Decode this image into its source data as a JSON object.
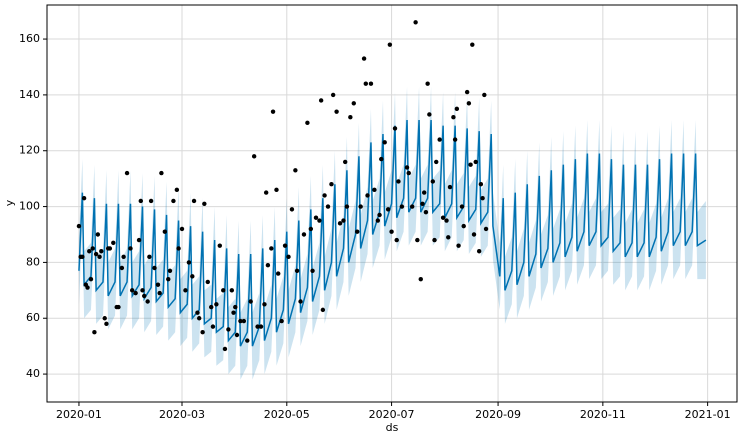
{
  "chart_data": {
    "type": "line",
    "xlabel": "ds",
    "ylabel": "y",
    "xlim": [
      -18.6,
      383.1
    ],
    "ylim": [
      30,
      172.2
    ],
    "xticks": [
      {
        "value": 0,
        "label": "2020-01"
      },
      {
        "value": 60,
        "label": "2020-03"
      },
      {
        "value": 121,
        "label": "2020-05"
      },
      {
        "value": 182,
        "label": "2020-07"
      },
      {
        "value": 244,
        "label": "2020-09"
      },
      {
        "value": 305,
        "label": "2020-11"
      },
      {
        "value": 366,
        "label": "2021-01"
      }
    ],
    "yticks": [
      40,
      60,
      80,
      100,
      120,
      140,
      160
    ],
    "grid": true,
    "x": [
      0,
      2,
      3,
      7,
      9,
      10,
      14,
      16,
      17,
      21,
      23,
      24,
      28,
      30,
      31,
      35,
      37,
      38,
      42,
      44,
      45,
      49,
      51,
      52,
      56,
      58,
      59,
      63,
      65,
      66,
      70,
      72,
      73,
      77,
      79,
      80,
      84,
      86,
      87,
      91,
      93,
      94,
      98,
      100,
      101,
      105,
      107,
      108,
      112,
      114,
      115,
      119,
      121,
      122,
      126,
      128,
      129,
      133,
      135,
      136,
      140,
      142,
      143,
      147,
      149,
      150,
      154,
      156,
      157,
      161,
      163,
      164,
      168,
      170,
      171,
      175,
      177,
      178,
      182,
      184,
      185,
      189,
      191,
      192,
      196,
      198,
      199,
      203,
      205,
      206,
      210,
      212,
      213,
      217,
      219,
      220,
      224,
      226,
      227,
      231,
      233,
      234,
      238,
      240,
      241,
      245,
      247,
      248,
      252,
      254,
      255,
      259,
      261,
      262,
      266,
      268,
      269,
      273,
      275,
      276,
      280,
      282,
      283,
      287,
      289,
      290,
      294,
      296,
      297,
      301,
      303,
      304,
      308,
      310,
      311,
      315,
      317,
      318,
      322,
      324,
      325,
      329,
      331,
      332,
      336,
      338,
      339,
      343,
      345,
      346,
      350,
      352,
      353,
      357,
      359,
      360,
      365
    ],
    "series": [
      {
        "color": "#0072B2",
        "values": [
          77,
          105,
          72,
          75,
          103,
          70,
          73,
          101,
          68,
          73,
          101,
          68,
          73,
          101,
          68,
          72,
          100,
          67,
          71,
          99,
          66,
          69,
          97,
          64,
          67,
          95,
          62,
          65,
          93,
          60,
          63,
          91,
          58,
          60,
          88,
          55,
          57,
          85,
          52,
          55,
          83,
          50,
          55,
          83,
          50,
          57,
          85,
          52,
          60,
          88,
          55,
          63,
          91,
          58,
          67,
          95,
          62,
          71,
          99,
          66,
          75,
          103,
          70,
          80,
          108,
          75,
          85,
          113,
          80,
          90,
          118,
          85,
          95,
          123,
          90,
          98,
          126,
          93,
          101,
          129,
          96,
          103,
          131,
          98,
          103,
          131,
          98,
          103,
          131,
          98,
          101,
          129,
          96,
          101,
          129,
          96,
          100,
          128,
          95,
          99,
          127,
          94,
          98,
          126,
          93,
          75,
          103,
          70,
          77,
          105,
          72,
          80,
          108,
          75,
          83,
          111,
          78,
          85,
          113,
          80,
          87,
          115,
          82,
          89,
          117,
          84,
          91,
          119,
          86,
          91,
          119,
          86,
          89,
          117,
          84,
          87,
          115,
          82,
          87,
          115,
          82,
          87,
          115,
          82,
          89,
          117,
          84,
          91,
          119,
          86,
          91,
          119,
          86,
          91,
          119,
          86,
          88
        ]
      }
    ],
    "band": {
      "color": "#0072B2",
      "lower": [
        65,
        93,
        60,
        63,
        91,
        58,
        61,
        89,
        56,
        61,
        89,
        56,
        61,
        89,
        56,
        60,
        88,
        55,
        59,
        87,
        54,
        57,
        85,
        52,
        55,
        83,
        50,
        53,
        81,
        48,
        51,
        79,
        46,
        48,
        76,
        43,
        45,
        73,
        40,
        43,
        71,
        38,
        43,
        71,
        38,
        45,
        73,
        40,
        48,
        76,
        43,
        51,
        79,
        46,
        55,
        83,
        50,
        59,
        87,
        54,
        63,
        91,
        58,
        68,
        96,
        63,
        73,
        101,
        68,
        78,
        106,
        73,
        83,
        111,
        78,
        86,
        114,
        81,
        89,
        117,
        84,
        91,
        119,
        86,
        91,
        119,
        86,
        91,
        119,
        86,
        89,
        117,
        84,
        89,
        117,
        84,
        88,
        116,
        83,
        87,
        115,
        82,
        86,
        114,
        81,
        63,
        91,
        58,
        65,
        93,
        60,
        68,
        96,
        63,
        71,
        99,
        66,
        73,
        101,
        68,
        75,
        103,
        70,
        77,
        105,
        72,
        79,
        107,
        74,
        79,
        107,
        74,
        77,
        105,
        72,
        75,
        103,
        70,
        75,
        103,
        70,
        75,
        103,
        70,
        77,
        105,
        72,
        79,
        107,
        74,
        79,
        107,
        74,
        79,
        107,
        74,
        74
      ],
      "upper": [
        89,
        117,
        84,
        87,
        115,
        82,
        85,
        113,
        80,
        85,
        113,
        80,
        85,
        113,
        80,
        84,
        112,
        79,
        83,
        111,
        78,
        81,
        109,
        76,
        79,
        107,
        74,
        77,
        105,
        72,
        75,
        103,
        70,
        72,
        100,
        67,
        69,
        97,
        64,
        67,
        95,
        62,
        67,
        95,
        62,
        69,
        97,
        64,
        72,
        100,
        67,
        75,
        103,
        70,
        79,
        107,
        74,
        83,
        111,
        78,
        87,
        115,
        82,
        92,
        120,
        87,
        97,
        125,
        92,
        102,
        130,
        97,
        107,
        135,
        102,
        110,
        138,
        105,
        113,
        141,
        108,
        115,
        143,
        110,
        115,
        143,
        110,
        115,
        143,
        110,
        113,
        141,
        108,
        113,
        141,
        108,
        112,
        140,
        107,
        111,
        139,
        106,
        110,
        138,
        105,
        87,
        115,
        82,
        89,
        117,
        84,
        92,
        120,
        87,
        95,
        123,
        90,
        97,
        125,
        92,
        99,
        127,
        94,
        101,
        129,
        96,
        103,
        131,
        98,
        103,
        131,
        98,
        101,
        129,
        96,
        99,
        127,
        94,
        99,
        127,
        94,
        99,
        127,
        94,
        101,
        129,
        96,
        103,
        131,
        98,
        103,
        131,
        98,
        103,
        131,
        98,
        102
      ]
    },
    "points": {
      "color": "#000000",
      "x": [
        0,
        1,
        2,
        3,
        4,
        5,
        6,
        7,
        8,
        9,
        10,
        11,
        12,
        13,
        15,
        16,
        17,
        18,
        20,
        22,
        23,
        25,
        26,
        28,
        30,
        31,
        33,
        35,
        36,
        37,
        38,
        40,
        41,
        42,
        44,
        46,
        47,
        48,
        50,
        52,
        53,
        55,
        57,
        58,
        60,
        62,
        64,
        66,
        67,
        69,
        70,
        72,
        73,
        75,
        77,
        78,
        80,
        82,
        84,
        85,
        87,
        89,
        90,
        91,
        92,
        94,
        96,
        98,
        100,
        102,
        104,
        106,
        108,
        109,
        110,
        112,
        113,
        115,
        116,
        118,
        120,
        122,
        124,
        126,
        127,
        129,
        131,
        133,
        135,
        136,
        138,
        140,
        141,
        142,
        143,
        145,
        147,
        148,
        150,
        152,
        154,
        155,
        156,
        158,
        160,
        162,
        164,
        166,
        167,
        168,
        170,
        172,
        174,
        175,
        176,
        178,
        180,
        181,
        182,
        184,
        185,
        186,
        188,
        191,
        192,
        194,
        196,
        197,
        199,
        200,
        201,
        202,
        203,
        204,
        206,
        207,
        208,
        210,
        212,
        214,
        215,
        216,
        218,
        219,
        220,
        221,
        223,
        224,
        226,
        227,
        228,
        229,
        230,
        231,
        233,
        234,
        235,
        236,
        237
      ],
      "values": [
        93,
        82,
        82,
        103,
        72,
        71,
        84,
        74,
        85,
        55,
        83,
        90,
        82,
        84,
        60,
        58,
        85,
        85,
        87,
        64,
        64,
        78,
        82,
        112,
        85,
        70,
        69,
        88,
        102,
        70,
        68,
        66,
        82,
        102,
        78,
        72,
        69,
        112,
        91,
        74,
        77,
        102,
        106,
        85,
        92,
        70,
        80,
        75,
        102,
        62,
        60,
        55,
        101,
        73,
        64,
        57,
        65,
        86,
        70,
        49,
        56,
        70,
        62,
        64,
        54,
        59,
        59,
        52,
        66,
        118,
        57,
        57,
        65,
        105,
        79,
        85,
        134,
        106,
        76,
        59,
        86,
        82,
        99,
        113,
        77,
        66,
        90,
        130,
        92,
        77,
        96,
        95,
        138,
        63,
        104,
        100,
        108,
        140,
        134,
        94,
        95,
        116,
        100,
        132,
        137,
        91,
        100,
        153,
        144,
        104,
        144,
        106,
        95,
        97,
        117,
        123,
        99,
        158,
        91,
        128,
        88,
        109,
        100,
        114,
        112,
        100,
        166,
        88,
        74,
        101,
        105,
        98,
        144,
        133,
        109,
        88,
        116,
        124,
        96,
        95,
        89,
        107,
        132,
        124,
        135,
        86,
        100,
        93,
        141,
        137,
        115,
        158,
        90,
        116,
        84,
        108,
        103,
        140,
        92
      ]
    }
  }
}
